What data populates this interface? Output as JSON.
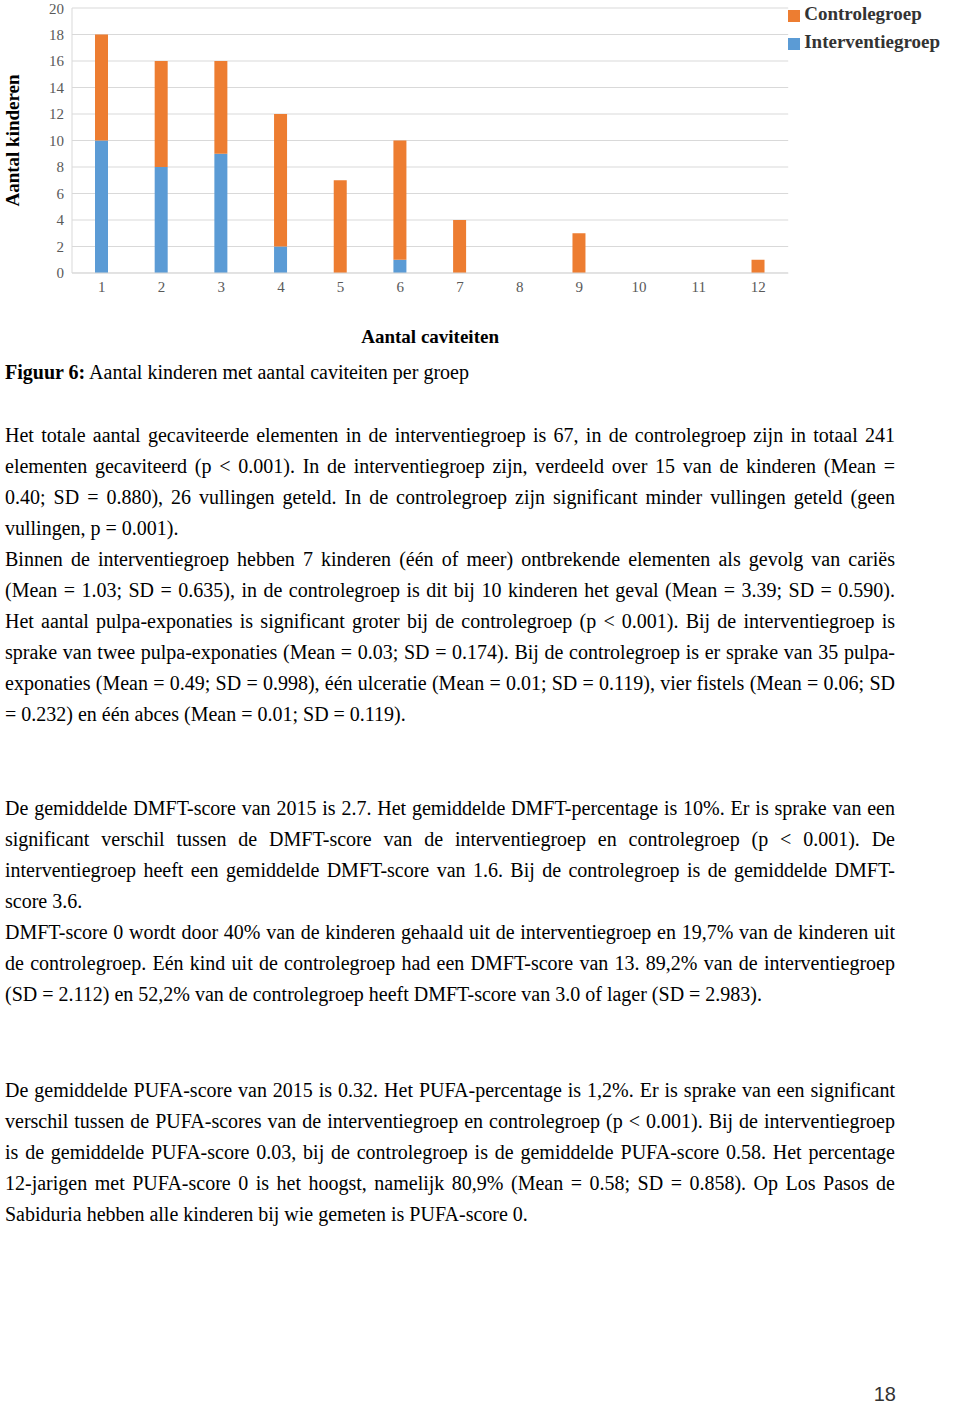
{
  "chart_data": {
    "type": "bar",
    "stacked": true,
    "x_label": "Aantal caviteiten",
    "y_label": "Aantal kinderen",
    "categories": [
      "1",
      "2",
      "3",
      "4",
      "5",
      "6",
      "7",
      "8",
      "9",
      "10",
      "11",
      "12"
    ],
    "series": [
      {
        "name": "Interventiegroep",
        "color": "#5b9bd5",
        "values": [
          10,
          8,
          9,
          2,
          0,
          1,
          0,
          0,
          0,
          0,
          0,
          0
        ]
      },
      {
        "name": "Controlegroep",
        "color": "#ed7d31",
        "values": [
          8,
          8,
          7,
          10,
          7,
          9,
          4,
          0,
          3,
          0,
          0,
          1
        ]
      }
    ],
    "ylim": [
      0,
      20
    ],
    "yticks": [
      0,
      2,
      4,
      6,
      8,
      10,
      12,
      14,
      16,
      18,
      20
    ],
    "grid": true,
    "legend": "top-right"
  },
  "document": {
    "caption": {
      "label": "Figuur 6:",
      "text": "Aantal kinderen met aantal caviteiten per groep"
    },
    "paragraphs": [
      [
        "Het totale aantal gecaviteerde elementen in de interventiegroep is 67, in de controlegroep zijn in totaal 241 elementen gecaviteerd (p < 0.001). In de interventiegroep zijn, verdeeld over 15 van de kinderen (Mean = 0.40; SD = 0.880), 26 vullingen geteld. In de controlegroep zijn significant minder vullingen geteld (geen vullingen, p = 0.001).",
        "Binnen de interventiegroep hebben 7 kinderen (één of meer) ontbrekende elementen als gevolg van cariës (Mean = 1.03; SD = 0.635), in de controlegroep is dit bij 10 kinderen het geval (Mean = 3.39; SD = 0.590). Het aantal pulpa-exponaties is significant groter bij de controlegroep (p < 0.001). Bij de interventiegroep is sprake van twee pulpa-exponaties (Mean = 0.03; SD = 0.174). Bij de controlegroep is er sprake van 35 pulpa-exponaties (Mean = 0.49; SD = 0.998), één ulceratie (Mean = 0.01; SD = 0.119), vier fistels (Mean = 0.06; SD = 0.232) en één abces (Mean = 0.01; SD = 0.119)."
      ],
      [
        "De gemiddelde DMFT-score van 2015 is 2.7. Het gemiddelde DMFT-percentage is 10%. Er is sprake van een significant verschil tussen de DMFT-score van de interventiegroep en controlegroep (p < 0.001). De interventiegroep heeft een gemiddelde DMFT-score van 1.6. Bij de controlegroep is de gemiddelde DMFT-score 3.6.",
        "DMFT-score 0 wordt door 40% van de kinderen gehaald uit de interventiegroep en 19,7% van de kinderen uit de controlegroep. Eén kind uit de controlegroep had een DMFT-score van 13. 89,2% van de interventiegroep (SD = 2.112) en 52,2% van de controlegroep heeft DMFT-score van 3.0 of lager (SD = 2.983)."
      ],
      [
        "De gemiddelde PUFA-score van 2015 is 0.32. Het PUFA-percentage is 1,2%. Er is sprake van een significant verschil tussen de PUFA-scores van de interventiegroep en controlegroep (p < 0.001). Bij de interventiegroep is de gemiddelde PUFA-score 0.03, bij de controlegroep is de gemiddelde PUFA-score 0.58. Het percentage 12-jarigen met PUFA-score 0 is het hoogst, namelijk 80,9% (Mean = 0.58; SD = 0.858). Op Los Pasos de Sabiduria hebben alle kinderen bij wie gemeten is PUFA-score 0."
      ]
    ],
    "page_number": "18"
  }
}
